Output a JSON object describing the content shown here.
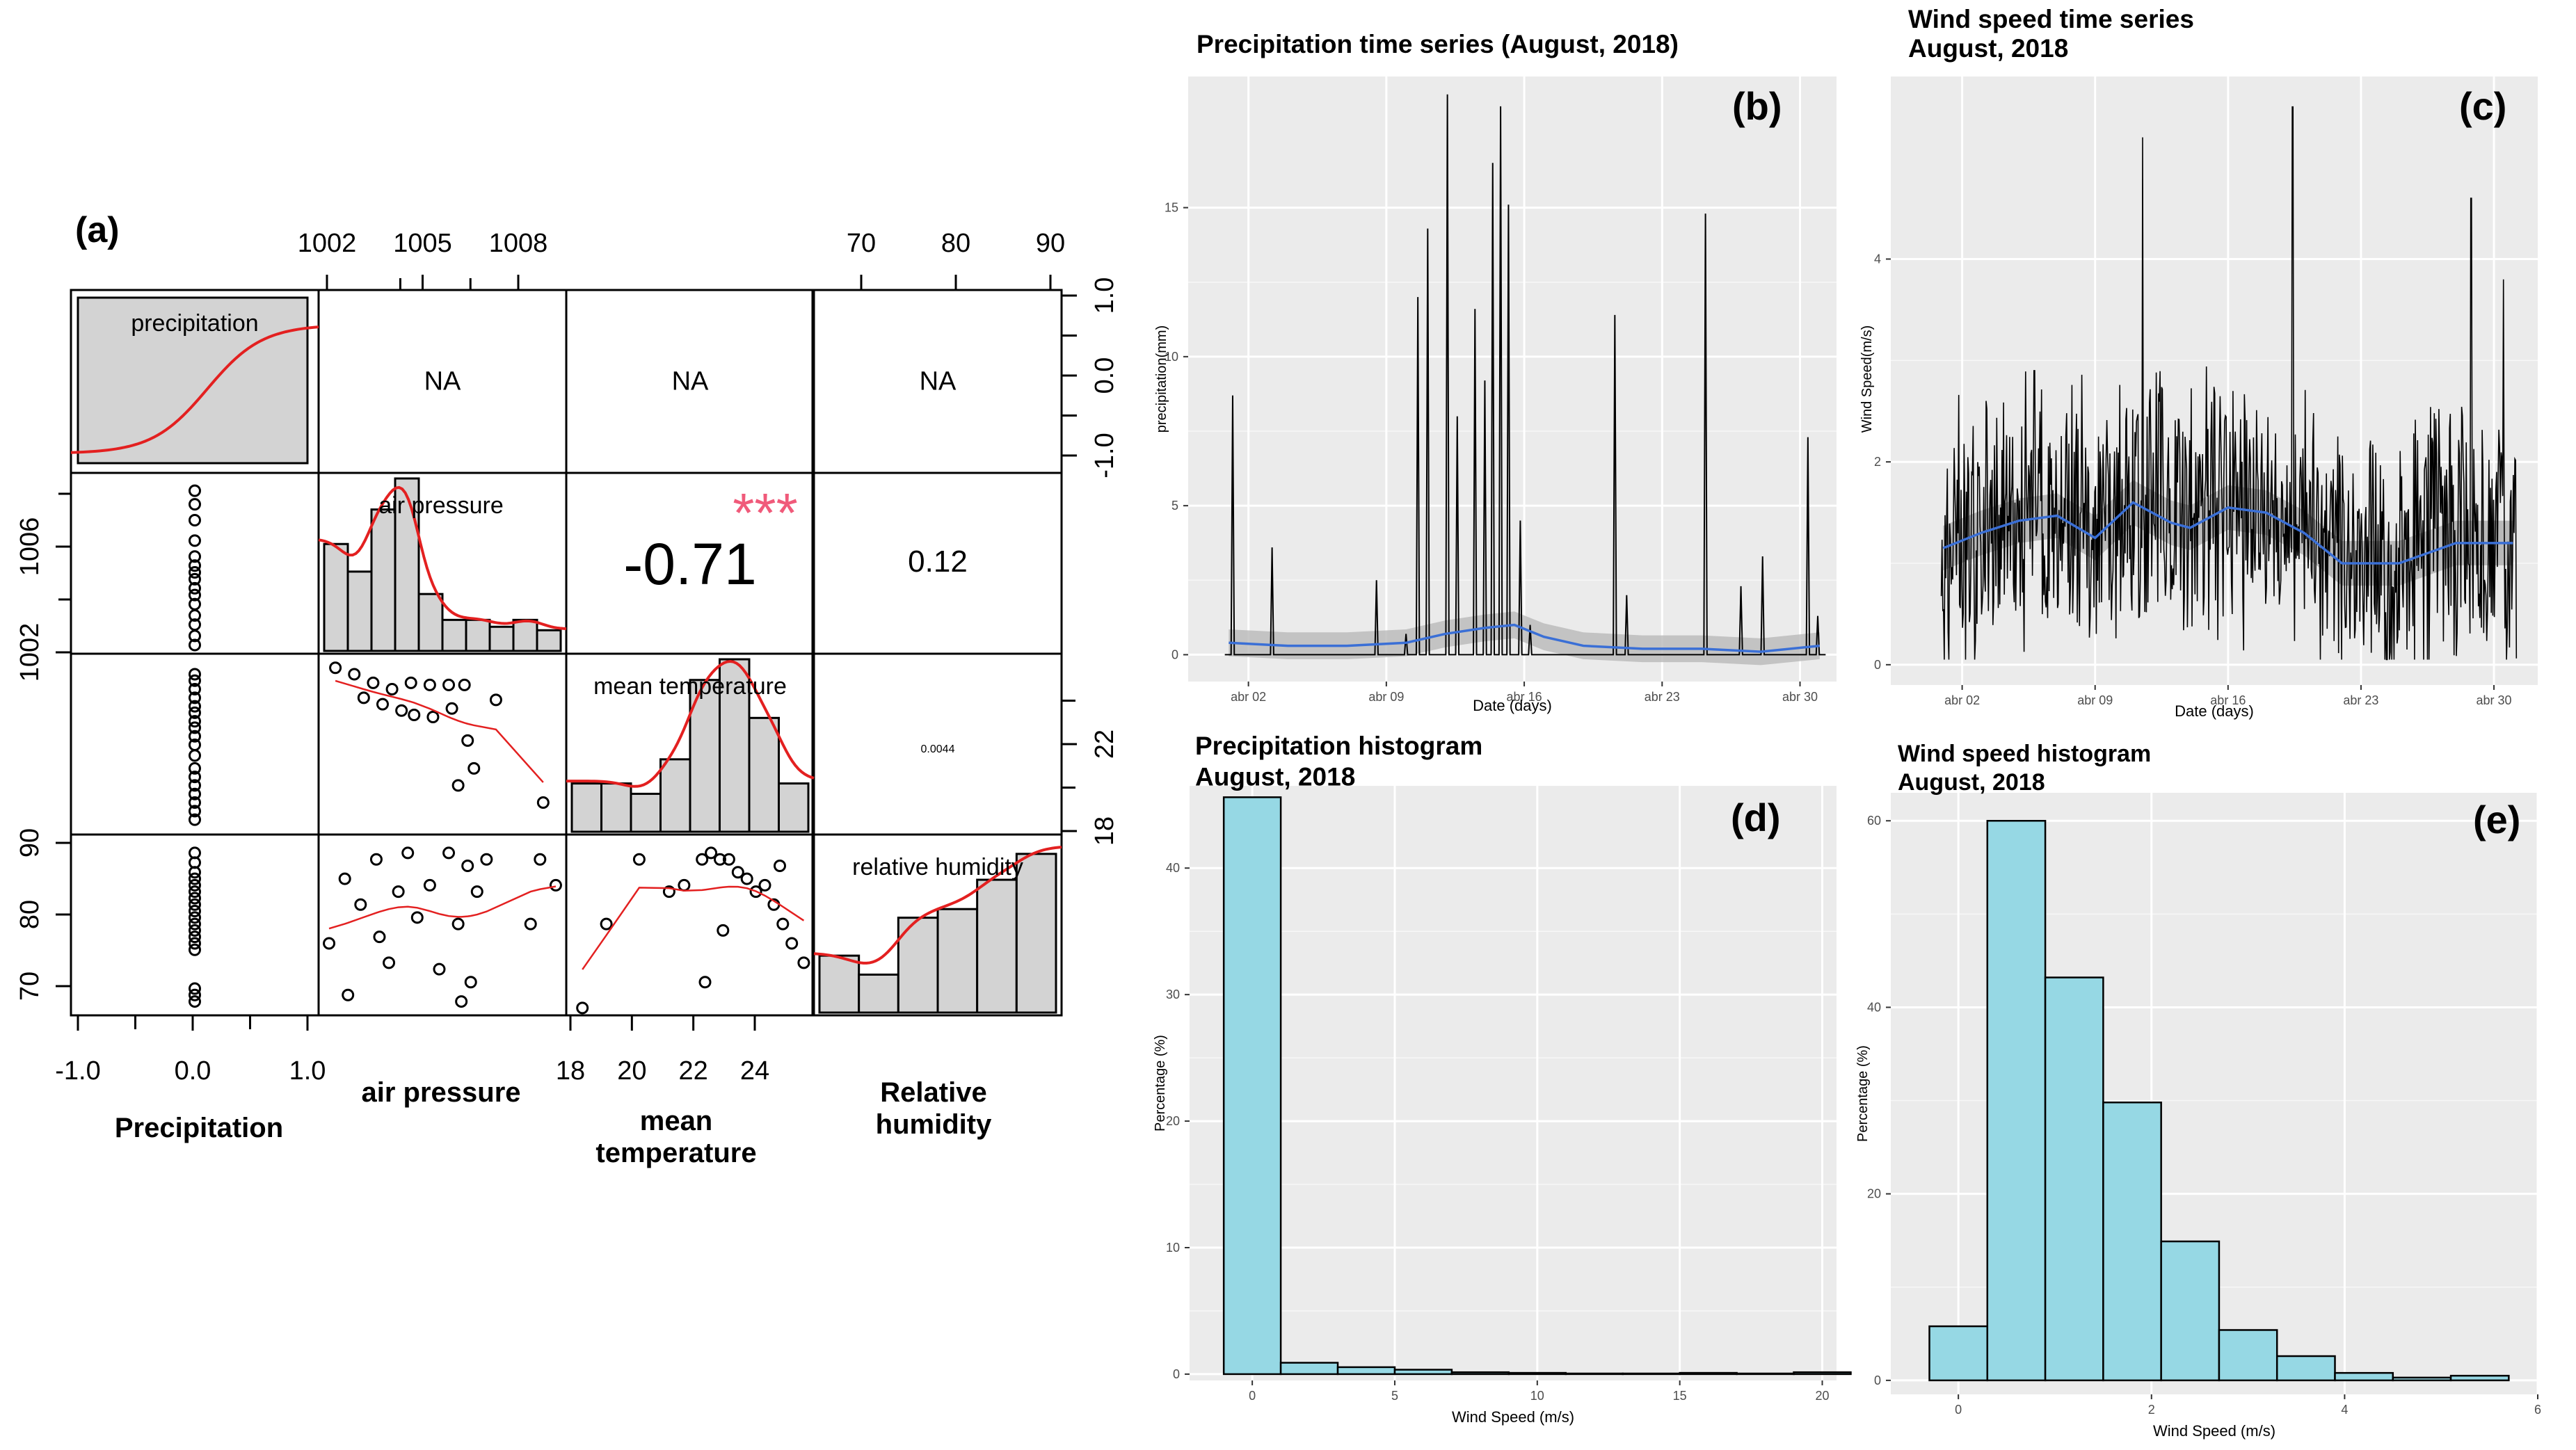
{
  "chart_data": [
    {
      "panel": "(a)",
      "type": "scatter_matrix",
      "variables": [
        "precipitation",
        "air pressure",
        "mean temperature",
        "relative humidity"
      ],
      "bottom_labels": [
        "Precipitation",
        "air pressure",
        "mean\ntemperature",
        "Relative\nhumidity"
      ],
      "axes": {
        "precipitation": {
          "ticks": [
            "-1.0",
            "0.0",
            "1.0"
          ],
          "range": [
            -1.0,
            1.0
          ]
        },
        "air_pressure": {
          "ticks": [
            "1002",
            "1005",
            "1008"
          ],
          "ticks_left": [
            "1002",
            "1006"
          ],
          "range": [
            1001.8,
            1009.4
          ]
        },
        "mean_temperature": {
          "ticks": [
            "18",
            "20",
            "22",
            "24"
          ],
          "range": [
            18.0,
            26.0
          ]
        },
        "relative_humidity": {
          "ticks": [
            "70",
            "80",
            "90"
          ],
          "range": [
            65.5,
            92.2
          ]
        },
        "right_ticks_row1": [
          "1.0",
          "0.5",
          "0.0",
          "-0.5",
          "-1.0"
        ],
        "right_ticks_row3": [
          "22",
          "18"
        ]
      },
      "correlations": [
        {
          "row": 1,
          "col": 1,
          "text": "NA"
        },
        {
          "row": 1,
          "col": 2,
          "text": "NA"
        },
        {
          "row": 1,
          "col": 3,
          "text": "NA"
        },
        {
          "row": 2,
          "col": 2,
          "text": "-0.71",
          "stars": "***"
        },
        {
          "row": 2,
          "col": 3,
          "text": "0.12"
        },
        {
          "row": 3,
          "col": 3,
          "text": "0.0044"
        }
      ],
      "histograms": {
        "air_pressure": [
          0.62,
          0.46,
          0.82,
          1.0,
          0.33,
          0.18,
          0.18,
          0.14,
          0.18,
          0.12
        ],
        "mean_temperature": [
          0.28,
          0.28,
          0.22,
          0.42,
          0.88,
          1.0,
          0.66,
          0.28
        ],
        "relative_humidity": [
          0.33,
          0.22,
          0.55,
          0.6,
          0.77,
          0.92
        ]
      },
      "scatter": {
        "precip_vs_pressure": [
          [
            0,
            1008.8
          ],
          [
            0,
            1008.2
          ],
          [
            0,
            1007.5
          ],
          [
            0,
            1006.6
          ],
          [
            0,
            1005.9
          ],
          [
            0,
            1005.5
          ],
          [
            0,
            1005.2
          ],
          [
            0,
            1004.9
          ],
          [
            0,
            1004.5
          ],
          [
            0,
            1004.2
          ],
          [
            0,
            1003.8
          ],
          [
            0,
            1003.3
          ],
          [
            0,
            1002.9
          ],
          [
            0,
            1002.4
          ],
          [
            0,
            1002.0
          ]
        ],
        "precip_vs_temp": [
          [
            0,
            25.3
          ],
          [
            0,
            25.0
          ],
          [
            0,
            24.6
          ],
          [
            0,
            24.2
          ],
          [
            0,
            23.8
          ],
          [
            0,
            23.5
          ],
          [
            0,
            23.1
          ],
          [
            0,
            22.8
          ],
          [
            0,
            22.4
          ],
          [
            0,
            22.0
          ],
          [
            0,
            21.5
          ],
          [
            0,
            20.9
          ],
          [
            0,
            20.5
          ],
          [
            0,
            20.1
          ],
          [
            0,
            19.7
          ],
          [
            0,
            19.3
          ],
          [
            0,
            18.9
          ],
          [
            0,
            18.5
          ]
        ],
        "precip_vs_rh": [
          [
            0,
            90
          ],
          [
            0,
            88.5
          ],
          [
            0,
            87
          ],
          [
            0,
            86
          ],
          [
            0,
            85
          ],
          [
            0,
            84
          ],
          [
            0,
            83
          ],
          [
            0,
            82
          ],
          [
            0,
            81
          ],
          [
            0,
            80
          ],
          [
            0,
            79
          ],
          [
            0,
            78
          ],
          [
            0,
            77
          ],
          [
            0,
            76
          ],
          [
            0,
            75
          ],
          [
            0,
            69
          ],
          [
            0,
            68
          ],
          [
            0,
            67
          ]
        ],
        "pressure_vs_temp": [
          [
            1002.2,
            25.6
          ],
          [
            1002.8,
            25.3
          ],
          [
            1003.4,
            24.9
          ],
          [
            1004.0,
            24.6
          ],
          [
            1004.6,
            24.9
          ],
          [
            1005.2,
            24.8
          ],
          [
            1005.8,
            24.8
          ],
          [
            1006.3,
            24.8
          ],
          [
            1007.3,
            24.1
          ],
          [
            1004.3,
            23.6
          ],
          [
            1003.1,
            24.2
          ],
          [
            1003.7,
            23.9
          ],
          [
            1004.7,
            23.4
          ],
          [
            1005.3,
            23.3
          ],
          [
            1005.9,
            23.7
          ],
          [
            1006.4,
            22.2
          ],
          [
            1006.6,
            20.9
          ],
          [
            1006.1,
            20.1
          ],
          [
            1008.8,
            19.3
          ]
        ],
        "pressure_vs_rh": [
          [
            1002.0,
            76
          ],
          [
            1002.5,
            86
          ],
          [
            1003.0,
            82
          ],
          [
            1003.5,
            89
          ],
          [
            1003.6,
            77
          ],
          [
            1003.9,
            73
          ],
          [
            1004.2,
            84
          ],
          [
            1004.5,
            90
          ],
          [
            1004.8,
            80
          ],
          [
            1005.2,
            85
          ],
          [
            1005.5,
            72
          ],
          [
            1005.8,
            90
          ],
          [
            1006.1,
            79
          ],
          [
            1006.4,
            88
          ],
          [
            1006.7,
            84
          ],
          [
            1007.0,
            89
          ],
          [
            1006.2,
            67
          ],
          [
            1006.5,
            70
          ],
          [
            1002.6,
            68
          ],
          [
            1008.4,
            79
          ],
          [
            1008.7,
            89
          ],
          [
            1009.2,
            85
          ]
        ],
        "temp_vs_rh": [
          [
            18.4,
            66
          ],
          [
            19.2,
            79
          ],
          [
            20.3,
            89
          ],
          [
            21.8,
            85
          ],
          [
            22.4,
            89
          ],
          [
            22.7,
            90
          ],
          [
            23.0,
            89
          ],
          [
            23.3,
            89
          ],
          [
            23.6,
            87
          ],
          [
            23.9,
            86
          ],
          [
            24.2,
            84
          ],
          [
            24.5,
            85
          ],
          [
            24.8,
            82
          ],
          [
            25.1,
            79
          ],
          [
            25.4,
            76
          ],
          [
            25.8,
            73
          ],
          [
            23.1,
            78
          ],
          [
            22.5,
            70
          ],
          [
            21.3,
            84
          ],
          [
            25.0,
            88
          ]
        ]
      }
    },
    {
      "panel": "(b)",
      "type": "line",
      "title": "Precipitation time series (August, 2018)",
      "xlabel": "Date (days)",
      "ylabel": "precipitation(mm)",
      "x_ticks": [
        "abr 02",
        "abr 09",
        "abr 16",
        "abr 23",
        "abr 30"
      ],
      "y_ticks": [
        "0",
        "5",
        "10",
        "15"
      ],
      "ylim": [
        -0.9,
        19.4
      ],
      "spikes": [
        [
          1.2,
          8.7
        ],
        [
          3.2,
          3.6
        ],
        [
          8.5,
          2.5
        ],
        [
          10.0,
          0.7
        ],
        [
          10.6,
          12.0
        ],
        [
          11.1,
          14.3
        ],
        [
          12.1,
          18.8
        ],
        [
          12.6,
          8.0
        ],
        [
          13.5,
          11.6
        ],
        [
          14.0,
          9.2
        ],
        [
          14.4,
          16.5
        ],
        [
          14.8,
          18.4
        ],
        [
          15.2,
          15.1
        ],
        [
          15.8,
          4.5
        ],
        [
          16.3,
          1.0
        ],
        [
          20.6,
          11.4
        ],
        [
          21.2,
          2.0
        ],
        [
          25.2,
          14.8
        ],
        [
          27.0,
          2.3
        ],
        [
          28.1,
          3.3
        ],
        [
          30.4,
          7.3
        ],
        [
          30.9,
          1.3
        ]
      ],
      "smooth": [
        [
          1,
          0.4
        ],
        [
          4,
          0.3
        ],
        [
          7,
          0.3
        ],
        [
          10,
          0.4
        ],
        [
          12,
          0.7
        ],
        [
          14,
          0.9
        ],
        [
          15.5,
          1.0
        ],
        [
          17,
          0.6
        ],
        [
          19,
          0.3
        ],
        [
          22,
          0.2
        ],
        [
          25,
          0.2
        ],
        [
          28,
          0.1
        ],
        [
          31,
          0.3
        ]
      ]
    },
    {
      "panel": "(c)",
      "type": "line",
      "title": "Wind speed time series\nAugust, 2018",
      "xlabel": "Date (days)",
      "ylabel": "Wind Speed(m/s)",
      "x_ticks": [
        "abr 02",
        "abr 09",
        "abr 16",
        "abr 23",
        "abr 30"
      ],
      "y_ticks": [
        "0",
        "2",
        "4"
      ],
      "ylim": [
        -0.2,
        5.8
      ],
      "smooth": [
        [
          1,
          1.15
        ],
        [
          3,
          1.3
        ],
        [
          5,
          1.42
        ],
        [
          7,
          1.47
        ],
        [
          9,
          1.25
        ],
        [
          11,
          1.6
        ],
        [
          13,
          1.4
        ],
        [
          14,
          1.35
        ],
        [
          16,
          1.55
        ],
        [
          18,
          1.5
        ],
        [
          20,
          1.3
        ],
        [
          22,
          1.0
        ],
        [
          25,
          1.0
        ],
        [
          28,
          1.2
        ],
        [
          31,
          1.2
        ]
      ],
      "peaks": [
        [
          5.8,
          2.9
        ],
        [
          11.5,
          5.2
        ],
        [
          19.4,
          5.5
        ],
        [
          28.8,
          4.6
        ],
        [
          30.5,
          3.8
        ]
      ]
    },
    {
      "panel": "(d)",
      "type": "bar",
      "title": "Precipitation histogram\nAugust, 2018",
      "xlabel": "Wind Speed (m/s)",
      "ylabel": "Percentage (%)",
      "x_ticks": [
        "0",
        "5",
        "10",
        "15",
        "20"
      ],
      "y_ticks": [
        "0",
        "10",
        "20",
        "30",
        "40"
      ],
      "xlim": [
        -2.2,
        20.5
      ],
      "ylim": [
        -0.5,
        46.5
      ],
      "bin_edges": [
        -1,
        1,
        3,
        5,
        7,
        9,
        11,
        13,
        15,
        17,
        19,
        21
      ],
      "values": [
        45.6,
        0.9,
        0.55,
        0.35,
        0.15,
        0.1,
        0.05,
        0.05,
        0.1,
        0.05,
        0.15
      ]
    },
    {
      "panel": "(e)",
      "type": "bar",
      "title": "Wind speed histogram\nAugust, 2018",
      "xlabel": "Wind Speed (m/s)",
      "ylabel": "Percentage (%)",
      "x_ticks": [
        "0",
        "2",
        "4",
        "6"
      ],
      "y_ticks": [
        "0",
        "20",
        "40",
        "60"
      ],
      "xlim": [
        -0.7,
        6.0
      ],
      "ylim": [
        -1.5,
        63
      ],
      "bin_edges": [
        -0.3,
        0.3,
        0.9,
        1.5,
        2.1,
        2.7,
        3.3,
        3.9,
        4.5,
        5.1,
        5.7
      ],
      "values": [
        5.8,
        60.0,
        43.2,
        29.8,
        14.9,
        5.4,
        2.6,
        0.8,
        0.3,
        0.5
      ]
    }
  ],
  "colors": {
    "bar_fill": "#96d8e4",
    "smooth": "#3a6fd6",
    "red": "#e32020",
    "stars": "#f05a7a",
    "panel_bg": "#ebebeb",
    "grey_bar": "#d3d3d3"
  }
}
